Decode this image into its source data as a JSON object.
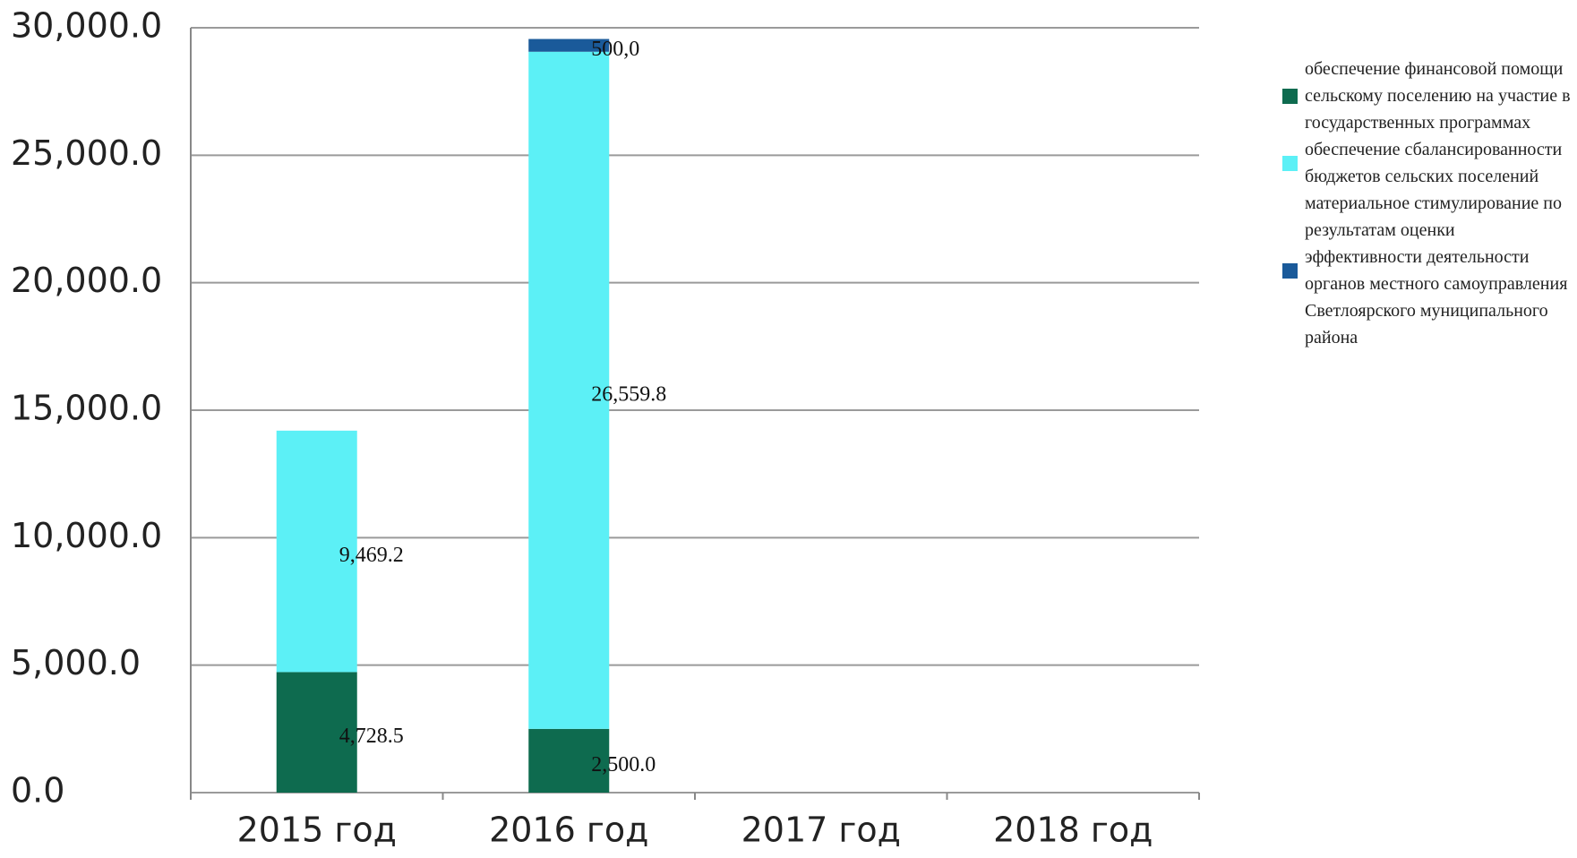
{
  "chart_data": {
    "type": "stacked_bar",
    "categories": [
      "2015 год",
      "2016 год",
      "2017 год",
      "2018 год"
    ],
    "series": [
      {
        "name": "обеспечение финансовой помощи сельскому поселению на участие в государственных программах",
        "color": "#0e6b4f",
        "values": [
          4728.5,
          2500.0,
          null,
          null
        ],
        "value_labels": [
          "4,728.5",
          "2,500.0",
          null,
          null
        ]
      },
      {
        "name": "обеспечение сбалансированности бюджетов сельских поселений",
        "color": "#5cf0f6",
        "values": [
          9469.2,
          26559.8,
          null,
          null
        ],
        "value_labels": [
          "9,469.2",
          "26,559.8",
          null,
          null
        ]
      },
      {
        "name": "материальное стимулирование по результатам оценки эффективности деятельности органов местного самоуправления Светлоярского муниципального района",
        "color": "#1a5a9a",
        "values": [
          null,
          500.0,
          null,
          null
        ],
        "value_labels": [
          null,
          "500,0",
          null,
          null
        ]
      }
    ],
    "ylim": [
      0,
      30000
    ],
    "yticks": [
      {
        "value": 0,
        "label": "0.0"
      },
      {
        "value": 5000,
        "label": "5,000.0"
      },
      {
        "value": 10000,
        "label": "10,000.0"
      },
      {
        "value": 15000,
        "label": "15,000.0"
      },
      {
        "value": 20000,
        "label": "20,000.0"
      },
      {
        "value": 25000,
        "label": "25,000.0"
      },
      {
        "value": 30000,
        "label": "30,000.0"
      }
    ],
    "grid": true,
    "legend": "right"
  }
}
